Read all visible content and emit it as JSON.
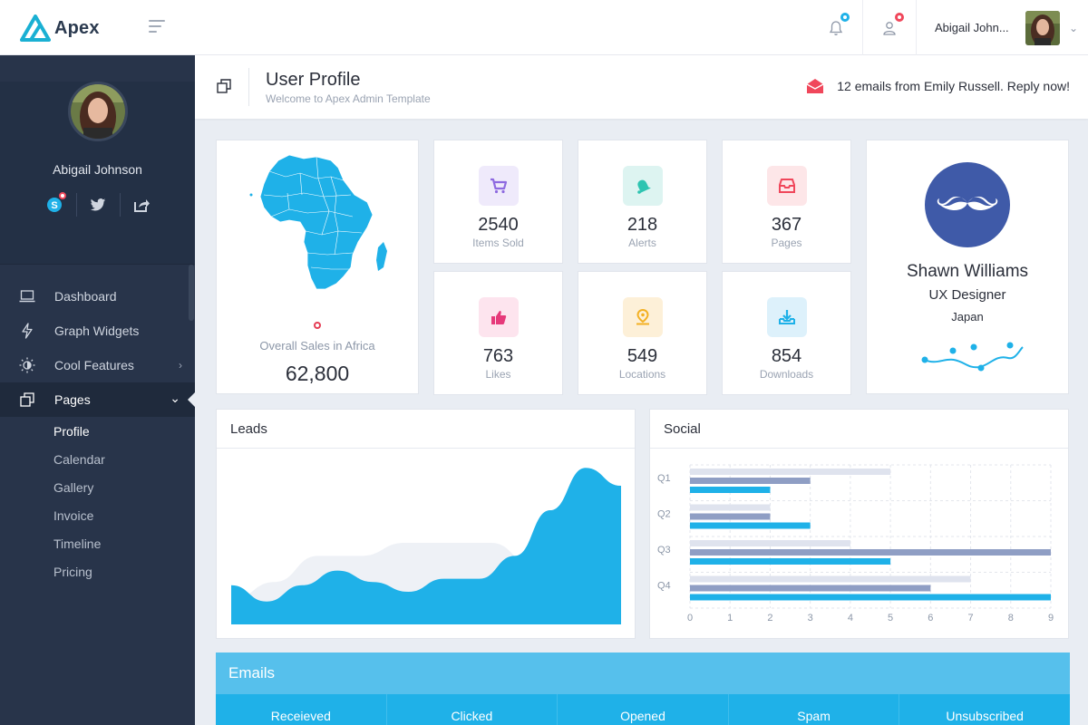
{
  "app": {
    "name": "Apex"
  },
  "topbar": {
    "user_name": "Abigail John...",
    "bell_dot_color": "#1fb1e8",
    "user_dot_color": "#f0475b"
  },
  "sidebar": {
    "profile_name": "Abigail Johnson",
    "social": [
      "skype-icon",
      "twitter-icon",
      "share-icon"
    ],
    "items": [
      {
        "label": "Dashboard",
        "icon": "laptop-icon"
      },
      {
        "label": "Graph Widgets",
        "icon": "bolt-icon"
      },
      {
        "label": "Cool Features",
        "icon": "brightness-icon"
      },
      {
        "label": "Pages",
        "icon": "pages-icon"
      }
    ],
    "subitems": [
      "Profile",
      "Calendar",
      "Gallery",
      "Invoice",
      "Timeline",
      "Pricing"
    ]
  },
  "page": {
    "title": "User Profile",
    "subtitle": "Welcome to Apex Admin Template",
    "notice": "12 emails from Emily Russell. Reply now!"
  },
  "map_card": {
    "label": "Overall Sales in Africa",
    "value": "62,800"
  },
  "stats": [
    {
      "value": "2540",
      "label": "Items Sold",
      "icon": "cart-icon",
      "bg": "#efeafb",
      "fg": "#8e6ae0"
    },
    {
      "value": "218",
      "label": "Alerts",
      "icon": "bell-icon",
      "bg": "#ddf4f1",
      "fg": "#2ec4b1"
    },
    {
      "value": "367",
      "label": "Pages",
      "icon": "inbox-icon",
      "bg": "#fde6e8",
      "fg": "#f0475b"
    },
    {
      "value": "763",
      "label": "Likes",
      "icon": "thumbs-up-icon",
      "bg": "#fde4ee",
      "fg": "#e6397a"
    },
    {
      "value": "549",
      "label": "Locations",
      "icon": "location-pin-icon",
      "bg": "#fdf0d8",
      "fg": "#f3b023"
    },
    {
      "value": "854",
      "label": "Downloads",
      "icon": "download-icon",
      "bg": "#ddf1fb",
      "fg": "#1fb1e8"
    }
  ],
  "person": {
    "name": "Shawn Williams",
    "role": "UX Designer",
    "location": "Japan"
  },
  "leads": {
    "title": "Leads"
  },
  "social_panel": {
    "title": "Social"
  },
  "chart_data": [
    {
      "type": "area",
      "title": "Leads",
      "series": [
        {
          "values": [
            1.5,
            2.6,
            4.2,
            4.2,
            5.0,
            5.0,
            5.0,
            3.6,
            2.2,
            0.9
          ]
        },
        {
          "values": [
            2.4,
            1.4,
            2.4,
            3.3,
            2.6,
            2.0,
            2.8,
            2.8,
            4.2,
            7.0,
            9.6,
            8.5
          ]
        }
      ],
      "colors": [
        "#eef1f6",
        "#1fb1e8"
      ]
    },
    {
      "type": "bar",
      "title": "Social",
      "orientation": "horizontal",
      "categories": [
        "Q1",
        "Q2",
        "Q3",
        "Q4"
      ],
      "series": [
        {
          "values": [
            5,
            2,
            4,
            7
          ],
          "color": "#dfe3ee"
        },
        {
          "values": [
            3,
            2,
            9,
            6
          ],
          "color": "#8f9ec4"
        },
        {
          "values": [
            2,
            3,
            5,
            9
          ],
          "color": "#1fb1e8"
        }
      ],
      "xlim": [
        0,
        9
      ],
      "xticks": [
        "0",
        "1",
        "2",
        "3",
        "4",
        "5",
        "6",
        "7",
        "8",
        "9"
      ],
      "grid": true
    }
  ],
  "emails": {
    "title": "Emails",
    "tabs": [
      "Receieved",
      "Clicked",
      "Opened",
      "Spam",
      "Unsubscribed"
    ]
  }
}
